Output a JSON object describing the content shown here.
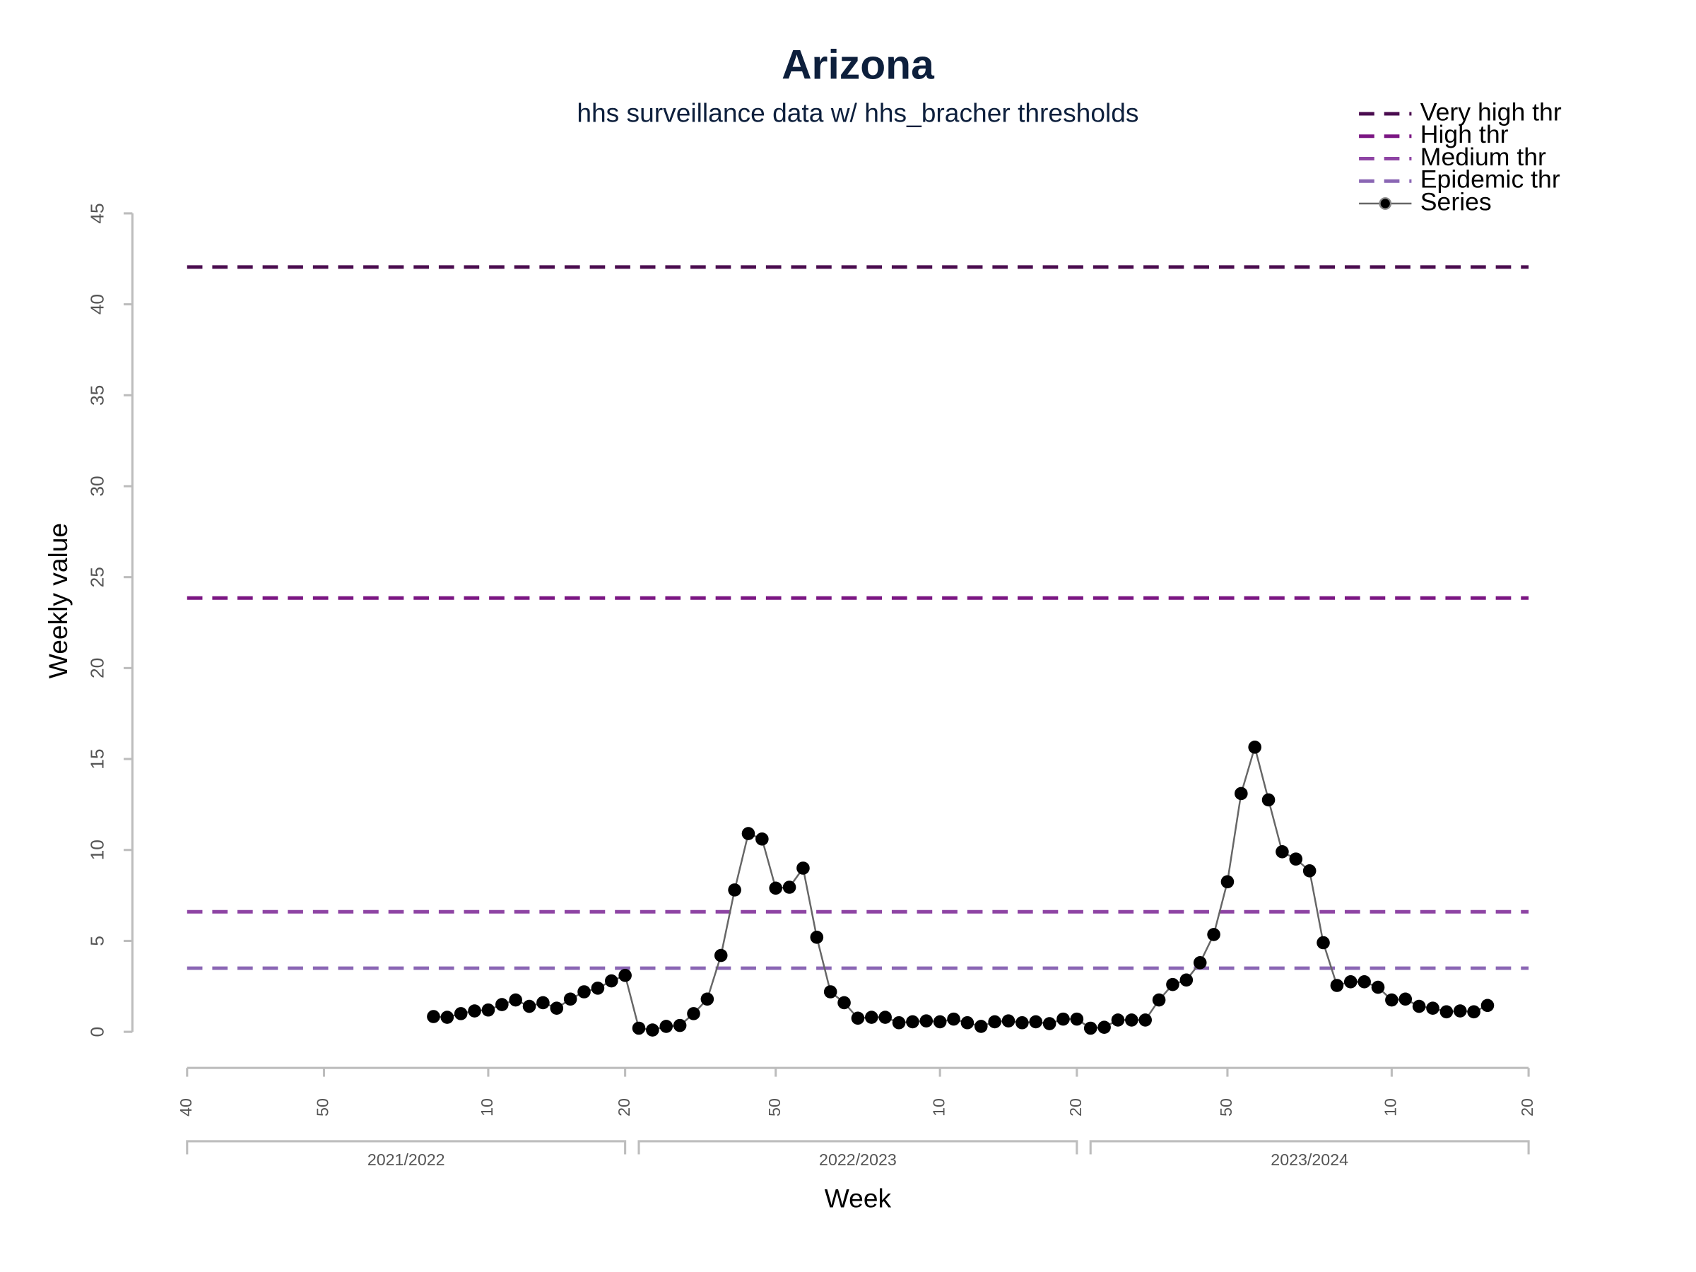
{
  "chart_data": {
    "type": "line",
    "title": "Arizona",
    "subtitle": "hhs surveillance data w/ hhs_bracher thresholds",
    "xlabel": "Week",
    "ylabel": "Weekly value",
    "xlim": [
      0,
      98
    ],
    "ylim": [
      0,
      45
    ],
    "yticks": [
      0,
      5,
      10,
      15,
      20,
      25,
      30,
      35,
      40,
      45
    ],
    "xticks": [
      {
        "value": 0,
        "label": "40"
      },
      {
        "value": 10,
        "label": "50"
      },
      {
        "value": 22,
        "label": "10"
      },
      {
        "value": 32,
        "label": "20"
      },
      {
        "value": 43,
        "label": "50"
      },
      {
        "value": 55,
        "label": "10"
      },
      {
        "value": 65,
        "label": "20"
      },
      {
        "value": 76,
        "label": "50"
      },
      {
        "value": 88,
        "label": "10"
      },
      {
        "value": 98,
        "label": "20"
      }
    ],
    "seasons": [
      {
        "label": "2021/2022",
        "range": [
          0,
          32
        ]
      },
      {
        "label": "2022/2023",
        "range": [
          33,
          65
        ]
      },
      {
        "label": "2023/2024",
        "range": [
          66,
          98
        ]
      }
    ],
    "thresholds": [
      {
        "name": "Very high thr",
        "color": "#4a0c4f",
        "value": 42.05
      },
      {
        "name": "High thr",
        "color": "#7b1683",
        "value": 23.85
      },
      {
        "name": "Medium thr",
        "color": "#8e44a4",
        "value": 6.6
      },
      {
        "name": "Epidemic thr",
        "color": "#8a66b4",
        "value": 3.5
      }
    ],
    "x": [
      18,
      19,
      20,
      21,
      22,
      23,
      24,
      25,
      26,
      27,
      28,
      29,
      30,
      31,
      32,
      33,
      34,
      35,
      36,
      37,
      38,
      39,
      40,
      41,
      42,
      43,
      44,
      45,
      46,
      47,
      48,
      49,
      50,
      51,
      52,
      53,
      54,
      55,
      56,
      57,
      58,
      59,
      60,
      61,
      62,
      63,
      64,
      65,
      66,
      67,
      68,
      69,
      70,
      71,
      72,
      73,
      74,
      75,
      76,
      77,
      78,
      79,
      80,
      81,
      82,
      83,
      84,
      85,
      86,
      87,
      88,
      89,
      90,
      91,
      92,
      93,
      94,
      95
    ],
    "series": [
      {
        "name": "Series",
        "color": "#000000",
        "line_color": "#666666",
        "values": [
          0.84,
          0.8,
          1.0,
          1.15,
          1.2,
          1.5,
          1.75,
          1.4,
          1.6,
          1.3,
          1.8,
          2.2,
          2.4,
          2.8,
          3.1,
          0.2,
          0.1,
          0.3,
          0.35,
          1.0,
          1.8,
          4.2,
          7.8,
          10.9,
          10.6,
          7.9,
          7.95,
          9.0,
          5.2,
          2.2,
          1.6,
          0.75,
          0.8,
          0.8,
          0.5,
          0.55,
          0.6,
          0.55,
          0.7,
          0.5,
          0.3,
          0.55,
          0.6,
          0.5,
          0.55,
          0.45,
          0.7,
          0.7,
          0.2,
          0.25,
          0.65,
          0.65,
          0.65,
          1.75,
          2.6,
          2.85,
          3.8,
          5.35,
          8.25,
          13.1,
          15.65,
          12.75,
          9.9,
          9.5,
          8.85,
          4.9,
          2.55,
          2.75,
          2.75,
          2.45,
          1.75,
          1.8,
          1.4,
          1.3,
          1.1,
          1.15,
          1.1,
          1.45
        ]
      }
    ]
  }
}
